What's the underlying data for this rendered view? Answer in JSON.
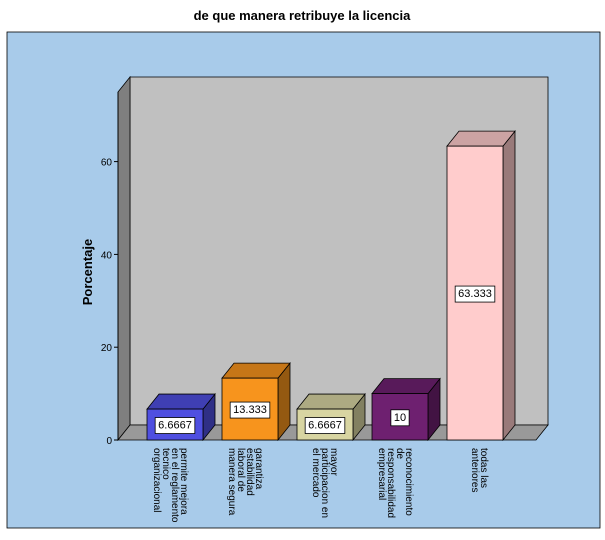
{
  "chart_data": {
    "type": "bar3d",
    "title": "de que manera retribuye la licencia",
    "ylabel": "Porcentaje",
    "categories": [
      "permite mejora en el reglamento tecnico organizacional",
      "garantiza estabilidad laboral de manera segura",
      "mayor participacion en el mercado",
      "reconocimiento de responsabilidad empresarial",
      "todas las anteriores"
    ],
    "values": [
      6.6667,
      13.333,
      6.6667,
      10,
      63.333
    ],
    "colors": [
      "#4f4fe0",
      "#f7941d",
      "#d8d5a2",
      "#6e2070",
      "#ffcccc"
    ],
    "ylim": [
      0,
      75
    ],
    "yticks": [
      0,
      20,
      40,
      60
    ]
  }
}
